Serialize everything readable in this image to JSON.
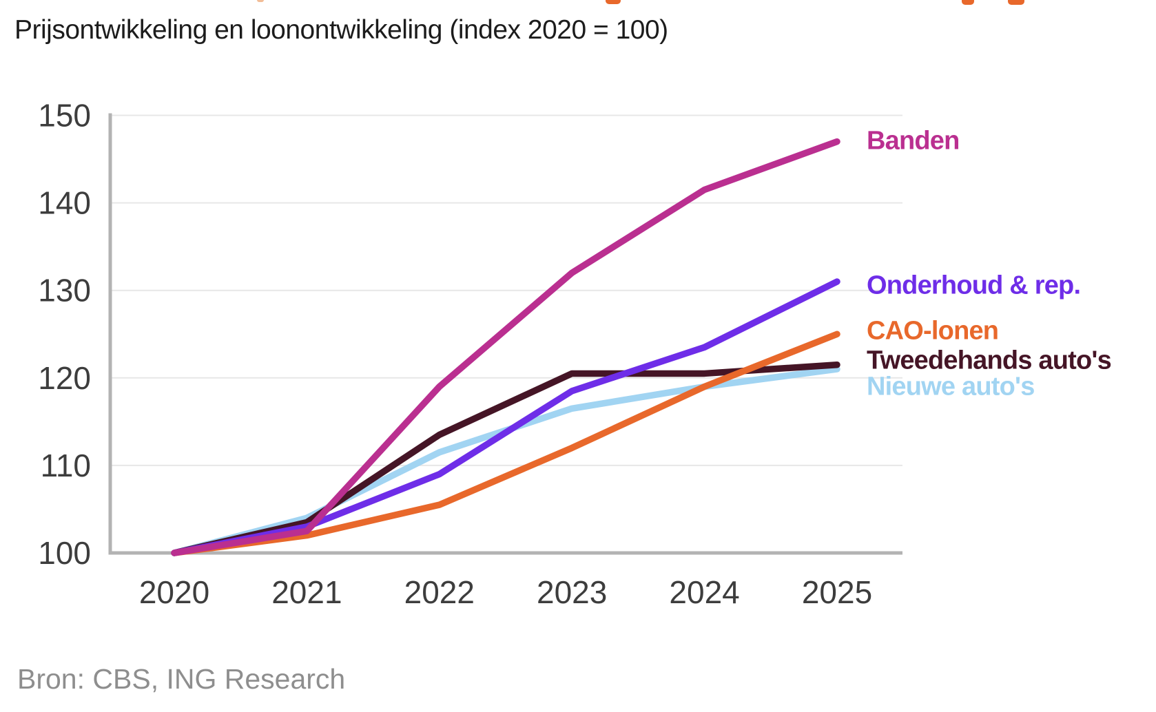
{
  "page": {
    "subtitle": "Prijsontwikkeling en loonontwikkeling (index 2020 = 100)",
    "source": "Bron: CBS, ING Research"
  },
  "chart_data": {
    "type": "line",
    "subtitle": "Prijsontwikkeling en loonontwikkeling (index 2020 = 100)",
    "categories": [
      "2020",
      "2021",
      "2022",
      "2023",
      "2024",
      "2025"
    ],
    "series": [
      {
        "name": "Banden",
        "color": "#ba2f90",
        "values": [
          100,
          102.5,
          119,
          132,
          141.5,
          147
        ]
      },
      {
        "name": "Onderhoud & rep.",
        "color": "#6e2de8",
        "values": [
          100,
          103,
          109,
          118.5,
          123.5,
          131
        ]
      },
      {
        "name": "CAO-lonen",
        "color": "#e8682b",
        "values": [
          100,
          102,
          105.5,
          112,
          119,
          125
        ]
      },
      {
        "name": "Tweedehands auto's",
        "color": "#451526",
        "values": [
          100,
          103.5,
          113.5,
          120.5,
          120.5,
          121.5
        ]
      },
      {
        "name": "Nieuwe auto's",
        "color": "#a1d4f2",
        "values": [
          100,
          104,
          111.5,
          116.5,
          119,
          121
        ]
      }
    ],
    "ylim": [
      100,
      150
    ],
    "yticks": [
      100,
      110,
      120,
      130,
      140,
      150
    ],
    "grid": true,
    "legend_position": "right",
    "axis_color": "#b3b3b3",
    "gridline_color": "#e7e7e7",
    "tick_label_color": "#3d3d3d",
    "source": "Bron: CBS, ING Research"
  }
}
